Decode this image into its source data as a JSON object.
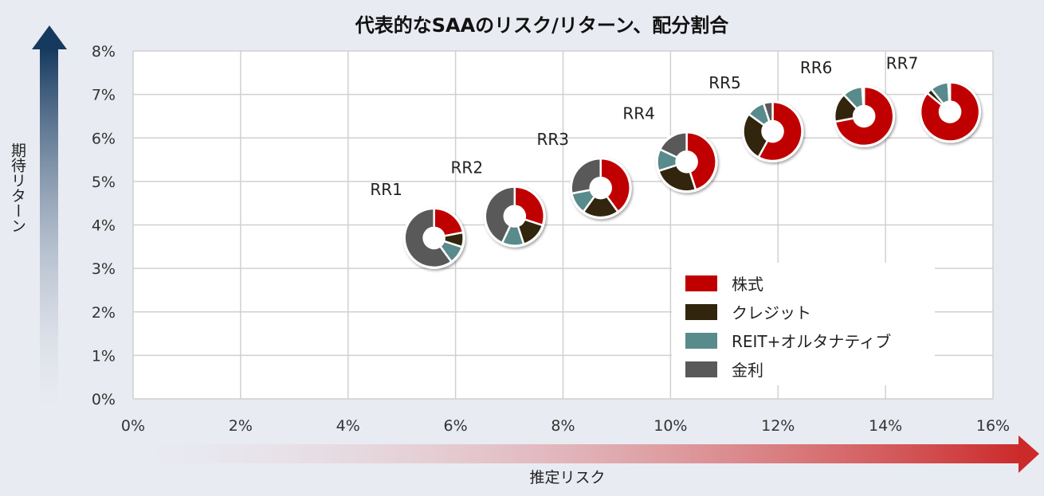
{
  "chart_data": {
    "type": "scatter",
    "title": "代表的なSAAのリスク/リターン、配分割合",
    "xlabel": "推定リスク",
    "ylabel": "期待リターン",
    "xlim": [
      0,
      16
    ],
    "ylim": [
      0,
      8
    ],
    "x_ticks": [
      "0%",
      "2%",
      "4%",
      "6%",
      "8%",
      "10%",
      "12%",
      "14%",
      "16%"
    ],
    "y_ticks": [
      "0%",
      "1%",
      "2%",
      "3%",
      "4%",
      "5%",
      "6%",
      "7%",
      "8%"
    ],
    "grid": true,
    "legend_position": "bottom-right",
    "categories": [
      "株式",
      "クレジット",
      "REIT+オルタナティブ",
      "金利"
    ],
    "colors": {
      "株式": "#c00000",
      "クレジット": "#32250d",
      "REIT+オルタナティブ": "#598a8c",
      "金利": "#595959"
    },
    "points": [
      {
        "label": "RR1",
        "x": 5.6,
        "y": 3.7,
        "weights": [
          0.22,
          0.08,
          0.1,
          0.6
        ]
      },
      {
        "label": "RR2",
        "x": 7.1,
        "y": 4.2,
        "weights": [
          0.3,
          0.15,
          0.12,
          0.43
        ]
      },
      {
        "label": "RR3",
        "x": 8.7,
        "y": 4.85,
        "weights": [
          0.4,
          0.2,
          0.12,
          0.28
        ]
      },
      {
        "label": "RR4",
        "x": 10.3,
        "y": 5.45,
        "weights": [
          0.45,
          0.25,
          0.12,
          0.18
        ]
      },
      {
        "label": "RR5",
        "x": 11.9,
        "y": 6.15,
        "weights": [
          0.58,
          0.27,
          0.1,
          0.05
        ]
      },
      {
        "label": "RR6",
        "x": 13.6,
        "y": 6.5,
        "weights": [
          0.72,
          0.16,
          0.11,
          0.01
        ]
      },
      {
        "label": "RR7",
        "x": 15.2,
        "y": 6.6,
        "weights": [
          0.86,
          0.03,
          0.1,
          0.01
        ]
      }
    ]
  }
}
